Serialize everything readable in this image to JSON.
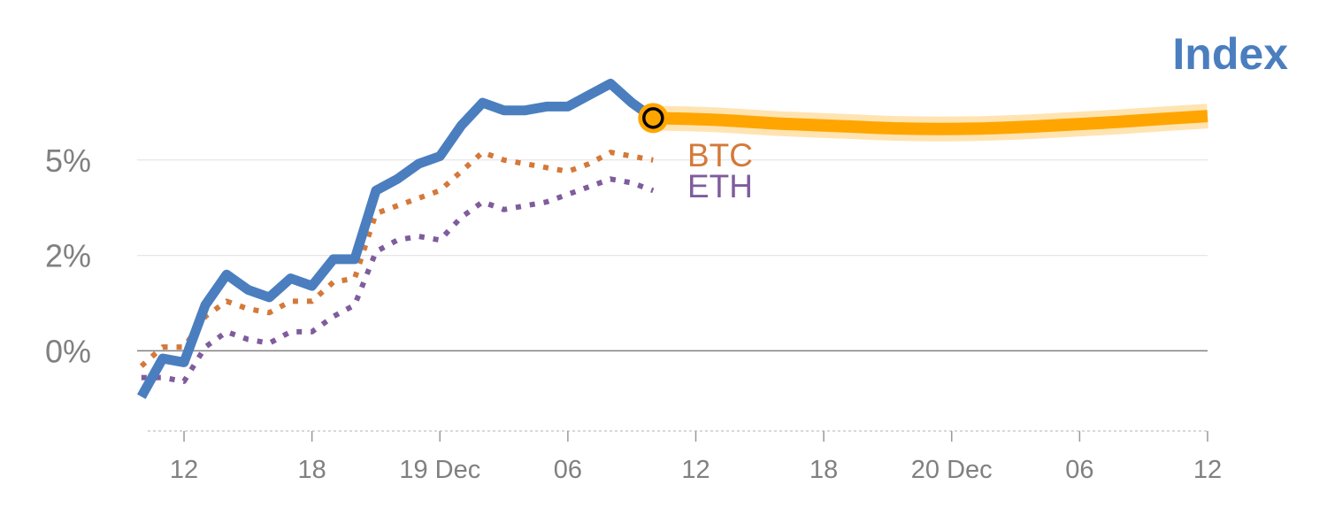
{
  "colors": {
    "index": "#4a7ebf",
    "btc": "#d4793a",
    "eth": "#7e5c9d",
    "forecast": "#ffa500",
    "axis_text": "#808080",
    "grid": "#e6e6e6",
    "zero_line": "#808080"
  },
  "chart_data": {
    "type": "line",
    "title": "Index",
    "x_unit": "hours",
    "x_ticks": [
      {
        "x": 12,
        "label": "12"
      },
      {
        "x": 18,
        "label": "18"
      },
      {
        "x": 24,
        "label": "19 Dec"
      },
      {
        "x": 30,
        "label": "06"
      },
      {
        "x": 36,
        "label": "12"
      },
      {
        "x": 42,
        "label": "18"
      },
      {
        "x": 48,
        "label": "20 Dec"
      },
      {
        "x": 54,
        "label": "06"
      },
      {
        "x": 60,
        "label": "12"
      }
    ],
    "y_ticks": [
      {
        "y": 0,
        "label": "0%"
      },
      {
        "y": 2.5,
        "label": "2%"
      },
      {
        "y": 5,
        "label": "5%"
      }
    ],
    "xlim": [
      9.8,
      60
    ],
    "ylim": [
      -2.1,
      7.8
    ],
    "series": [
      {
        "name": "Index",
        "key": "index",
        "style": "solid",
        "x": [
          10,
          11,
          12,
          13,
          14,
          15,
          16,
          17,
          18,
          19,
          20,
          21,
          22,
          23,
          24,
          25,
          26,
          27,
          28,
          29,
          30,
          31,
          32,
          33,
          34
        ],
        "y": [
          -1.2,
          -0.2,
          -0.3,
          1.2,
          2.0,
          1.6,
          1.4,
          1.9,
          1.7,
          2.4,
          2.4,
          4.2,
          4.5,
          4.9,
          5.1,
          5.9,
          6.5,
          6.3,
          6.3,
          6.4,
          6.4,
          6.7,
          7.0,
          6.5,
          6.1
        ]
      },
      {
        "name": "BTC",
        "key": "btc",
        "style": "dotted",
        "x": [
          10,
          11,
          12,
          13,
          14,
          15,
          16,
          17,
          18,
          19,
          20,
          21,
          22,
          23,
          24,
          25,
          26,
          27,
          28,
          29,
          30,
          31,
          32,
          33,
          34
        ],
        "y": [
          -0.4,
          0.1,
          0.1,
          0.9,
          1.3,
          1.1,
          1.0,
          1.3,
          1.3,
          1.8,
          1.9,
          3.6,
          3.8,
          4.0,
          4.2,
          4.7,
          5.2,
          5.0,
          4.9,
          4.8,
          4.7,
          4.9,
          5.2,
          5.1,
          5.0
        ]
      },
      {
        "name": "ETH",
        "key": "eth",
        "style": "dotted",
        "x": [
          10,
          11,
          12,
          13,
          14,
          15,
          16,
          17,
          18,
          19,
          20,
          21,
          22,
          23,
          24,
          25,
          26,
          27,
          28,
          29,
          30,
          31,
          32,
          33,
          34
        ],
        "y": [
          -0.7,
          -0.7,
          -0.8,
          0.1,
          0.5,
          0.3,
          0.2,
          0.5,
          0.5,
          0.9,
          1.2,
          2.6,
          2.9,
          3.0,
          2.9,
          3.5,
          3.9,
          3.7,
          3.8,
          3.9,
          4.1,
          4.3,
          4.5,
          4.4,
          4.2
        ]
      },
      {
        "key": "forecast",
        "style": "band",
        "x": [
          34,
          37,
          40,
          43,
          46,
          49,
          52,
          55,
          58,
          60
        ],
        "y": [
          6.1,
          6.05,
          5.95,
          5.88,
          5.82,
          5.82,
          5.88,
          5.97,
          6.08,
          6.15
        ]
      }
    ],
    "marker": {
      "x": 34,
      "y": 6.1
    },
    "series_labels": [
      {
        "key": "btc",
        "text": "BTC"
      },
      {
        "key": "eth",
        "text": "ETH"
      }
    ]
  }
}
